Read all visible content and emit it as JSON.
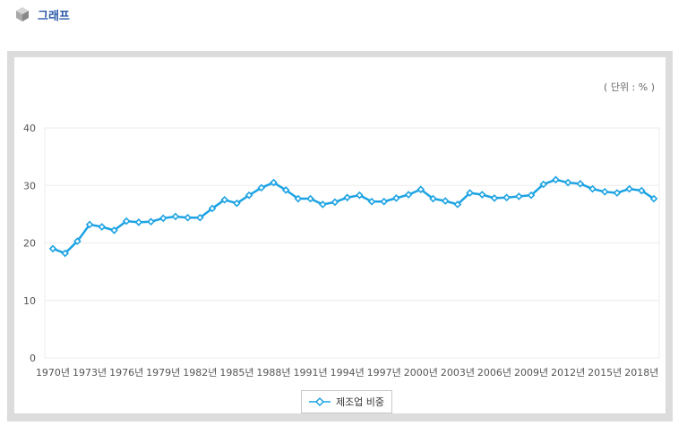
{
  "header": {
    "title": "그래프",
    "icon": "cube-icon"
  },
  "unit_label": "( 단위 : % )",
  "colors": {
    "series": "#1da3e3",
    "grid": "#ececec",
    "axis_text": "#555555"
  },
  "chart_data": {
    "type": "line",
    "title": "",
    "xlabel": "",
    "ylabel": "",
    "ylim": [
      0,
      40
    ],
    "yticks": [
      0,
      10,
      20,
      30,
      40
    ],
    "x": [
      1970,
      1971,
      1972,
      1973,
      1974,
      1975,
      1976,
      1977,
      1978,
      1979,
      1980,
      1981,
      1982,
      1983,
      1984,
      1985,
      1986,
      1987,
      1988,
      1989,
      1990,
      1991,
      1992,
      1993,
      1994,
      1995,
      1996,
      1997,
      1998,
      1999,
      2000,
      2001,
      2002,
      2003,
      2004,
      2005,
      2006,
      2007,
      2008,
      2009,
      2010,
      2011,
      2012,
      2013,
      2014,
      2015,
      2016,
      2017,
      2018,
      2019
    ],
    "x_tick_labels": [
      "1970년",
      "1973년",
      "1976년",
      "1979년",
      "1982년",
      "1985년",
      "1988년",
      "1991년",
      "1994년",
      "1997년",
      "2000년",
      "2003년",
      "2006년",
      "2009년",
      "2012년",
      "2015년",
      "2018년"
    ],
    "grid": true,
    "legend_position": "bottom-center",
    "series": [
      {
        "name": "제조업 비중",
        "values": [
          19.0,
          18.2,
          20.3,
          23.2,
          22.8,
          22.2,
          23.8,
          23.6,
          23.7,
          24.3,
          24.6,
          24.4,
          24.4,
          26.0,
          27.5,
          26.9,
          28.3,
          29.6,
          30.5,
          29.2,
          27.7,
          27.7,
          26.7,
          27.1,
          27.9,
          28.3,
          27.2,
          27.2,
          27.8,
          28.4,
          29.3,
          27.7,
          27.3,
          26.7,
          28.7,
          28.4,
          27.8,
          27.9,
          28.1,
          28.3,
          30.2,
          31.0,
          30.5,
          30.3,
          29.4,
          28.9,
          28.7,
          29.4,
          29.1,
          27.7
        ]
      }
    ]
  }
}
